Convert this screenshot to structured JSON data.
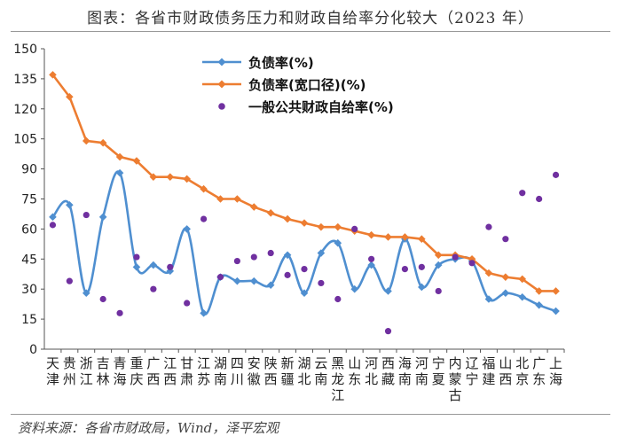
{
  "header": {
    "title": "图表：各省市财政债务压力和财政自给率分化较大（2023 年）"
  },
  "footer": {
    "source": "资料来源：各省市财政局，Wind，泽平宏观"
  },
  "colors": {
    "blue": "#4F8FD0",
    "orange": "#ED7D31",
    "purple": "#7030A0"
  },
  "chart_data": {
    "type": "line",
    "categories": [
      "天津",
      "贵州",
      "浙江",
      "吉林",
      "青海",
      "重庆",
      "广西",
      "江西",
      "甘肃",
      "江苏",
      "湖南",
      "四川",
      "安徽",
      "陕西",
      "新疆",
      "湖北",
      "云南",
      "黑龙江",
      "山东",
      "河北",
      "西藏",
      "海南",
      "河南",
      "宁夏",
      "内蒙古",
      "辽宁",
      "福建",
      "山西",
      "北京",
      "广东",
      "上海"
    ],
    "ylim": [
      0,
      150
    ],
    "yticks": [
      0,
      15,
      30,
      45,
      60,
      75,
      90,
      105,
      120,
      135,
      150
    ],
    "series": [
      {
        "name": "负债率(%)",
        "type": "line",
        "color": "#4F8FD0",
        "values": [
          66,
          72,
          28,
          66,
          88,
          41,
          42,
          39,
          60,
          18,
          36,
          34,
          34,
          32,
          47,
          28,
          48,
          53,
          30,
          42,
          29,
          55,
          31,
          42,
          45,
          44,
          25,
          28,
          26,
          22,
          19
        ]
      },
      {
        "name": "负债率(宽口径)(%)",
        "type": "line",
        "color": "#ED7D31",
        "values": [
          137,
          126,
          104,
          103,
          96,
          94,
          86,
          86,
          85,
          80,
          75,
          75,
          71,
          68,
          65,
          63,
          61,
          61,
          59,
          57,
          56,
          56,
          55,
          47,
          47,
          45,
          38,
          36,
          35,
          29,
          29
        ]
      },
      {
        "name": "一般公共财政自给率(%)",
        "type": "scatter",
        "color": "#7030A0",
        "values": [
          62,
          34,
          67,
          25,
          18,
          46,
          30,
          41,
          23,
          65,
          36,
          44,
          46,
          48,
          37,
          40,
          33,
          25,
          60,
          45,
          9,
          40,
          41,
          29,
          46,
          43,
          61,
          55,
          78,
          75,
          87
        ]
      }
    ]
  }
}
